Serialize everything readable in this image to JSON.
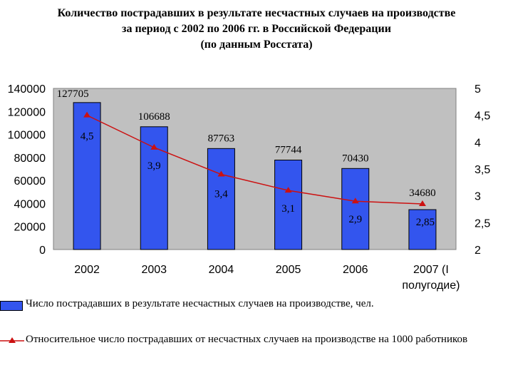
{
  "title_lines": [
    "Количество пострадавших в результате несчастных случаев на производстве",
    "за период с 2002 по 2006 гг. в Российской Федерации",
    "(по данным Росстата)"
  ],
  "colors": {
    "bar": "#3355ee",
    "line": "#cc1111",
    "plot_bg": "#c0c0c0"
  },
  "legend": {
    "bar_label": "Число пострадавших в результате несчастных случаев на производстве, чел.",
    "line_label": "Относительное число пострадавших от несчастных случаев на производстве на 1000 работников"
  },
  "chart_data": {
    "type": "bar",
    "categories": [
      "2002",
      "2003",
      "2004",
      "2005",
      "2006",
      "2007 (I полугодие)"
    ],
    "category_lines": [
      [
        "2002"
      ],
      [
        "2003"
      ],
      [
        "2004"
      ],
      [
        "2005"
      ],
      [
        "2006"
      ],
      [
        "2007 (I",
        "полугодие)"
      ]
    ],
    "series": [
      {
        "type": "bar",
        "axis": "left",
        "values": [
          127705,
          106688,
          87763,
          77744,
          70430,
          34680
        ],
        "labels": [
          "127705",
          "106688",
          "87763",
          "77744",
          "70430",
          "34680"
        ]
      },
      {
        "type": "line",
        "axis": "right",
        "values": [
          4.5,
          3.9,
          3.4,
          3.1,
          2.9,
          2.85
        ],
        "labels": [
          "4,5",
          "3,9",
          "3,4",
          "3,1",
          "2,9",
          "2,85"
        ]
      }
    ],
    "y_left": {
      "range": [
        0,
        140000
      ],
      "ticks": [
        "0",
        "20000",
        "40000",
        "60000",
        "80000",
        "100000",
        "120000",
        "140000"
      ]
    },
    "y_right": {
      "range": [
        2,
        5
      ],
      "ticks": [
        "2",
        "2,5",
        "3",
        "3,5",
        "4",
        "4,5",
        "5"
      ]
    },
    "grid": false,
    "legend_position": "bottom"
  }
}
